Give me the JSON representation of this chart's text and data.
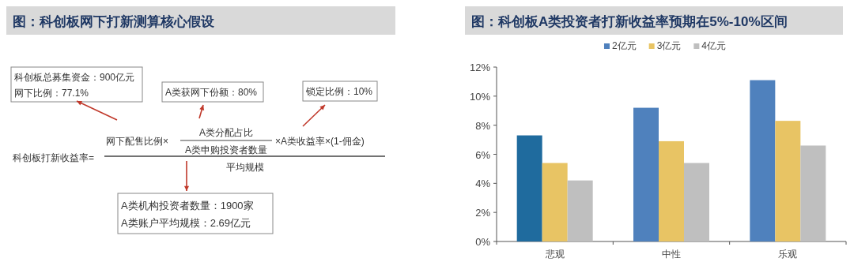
{
  "chart_data": [
    {
      "type": "other",
      "title": "图：科创板网下打新测算核心假设",
      "annotations": [
        "科创板总募集资金：900亿元",
        "网下比例：77.1%",
        "A类获网下份额：80%",
        "锁定比例：10%",
        "科创板打新收益率=",
        "网下配售比例×",
        "A类分配占比",
        "A类申购投资者数量",
        "×A类收益率×(1-佣金)",
        "平均规模",
        "A类机构投资者数量：1900家",
        "A类账户平均规模：2.69亿元"
      ]
    },
    {
      "type": "bar",
      "title": "图：科创板A类投资者打新收益率预期在5%-10%区间",
      "categories": [
        "悲观",
        "中性",
        "乐观"
      ],
      "series": [
        {
          "name": "2亿元",
          "color": "#4f81bd",
          "colors": [
            "#1f6b9e",
            "#4f81bd",
            "#4f81bd"
          ],
          "values": [
            7.3,
            9.2,
            11.1
          ]
        },
        {
          "name": "3亿元",
          "color": "#e8c464",
          "values": [
            5.4,
            6.9,
            8.3
          ]
        },
        {
          "name": "4亿元",
          "color": "#bfbfbf",
          "values": [
            4.2,
            5.4,
            6.6
          ]
        }
      ],
      "ylim": [
        0,
        12
      ],
      "yticks": [
        {
          "value": 0,
          "label": "0%"
        },
        {
          "value": 2,
          "label": "2%"
        },
        {
          "value": 4,
          "label": "4%"
        },
        {
          "value": 6,
          "label": "6%"
        },
        {
          "value": 8,
          "label": "8%"
        },
        {
          "value": 10,
          "label": "10%"
        },
        {
          "value": 12,
          "label": "12%"
        }
      ],
      "grid": false,
      "legend": "top"
    }
  ]
}
